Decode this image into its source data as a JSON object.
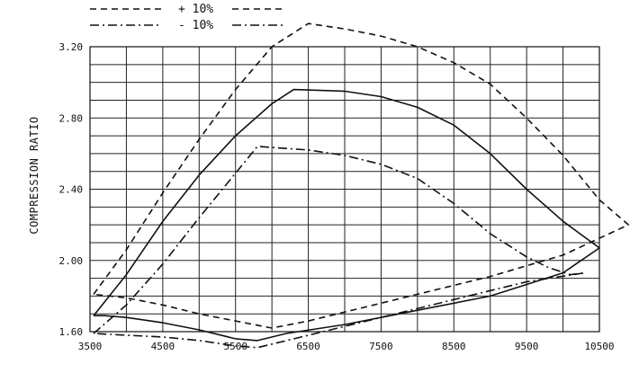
{
  "chart_data": {
    "type": "line",
    "title": "",
    "xlabel": "",
    "ylabel": "COMPRESSION RATIO",
    "xlim": [
      3500,
      10500
    ],
    "ylim": [
      1.6,
      3.2
    ],
    "grid": true,
    "x_tick_labels": [
      "3500",
      "4500",
      "5500",
      "6500",
      "7500",
      "8500",
      "9500",
      "10500"
    ],
    "x_tick_values": [
      3500,
      4500,
      5500,
      6500,
      7500,
      8500,
      9500,
      10500
    ],
    "y_tick_labels": [
      "1.60",
      "2.00",
      "2.40",
      "2.80",
      "3.20"
    ],
    "y_tick_values": [
      1.6,
      2.0,
      2.4,
      2.8,
      3.2
    ],
    "legend": [
      {
        "label": "+ 10%",
        "style": "dashed"
      },
      {
        "label": "- 10%",
        "style": "dashdot"
      }
    ],
    "series": [
      {
        "style": "solid",
        "x": [
          3550,
          4000,
          4500,
          5000,
          5500,
          6000,
          6300,
          7000,
          7500,
          8000,
          8500,
          9000,
          9500,
          10000,
          10500,
          10000,
          9000,
          8000,
          7000,
          6200,
          5800,
          5500,
          5000,
          4500,
          4000,
          3700,
          3550
        ],
        "y": [
          1.69,
          1.92,
          2.22,
          2.48,
          2.7,
          2.88,
          2.96,
          2.95,
          2.92,
          2.86,
          2.76,
          2.6,
          2.4,
          2.22,
          2.07,
          1.93,
          1.8,
          1.72,
          1.64,
          1.59,
          1.55,
          1.56,
          1.61,
          1.65,
          1.68,
          1.69,
          1.69
        ]
      },
      {
        "style": "dashed",
        "x": [
          3550,
          4000,
          4500,
          5000,
          5500,
          6000,
          6500,
          7000,
          7500,
          8000,
          8500,
          9000,
          9500,
          10000,
          10500,
          10900,
          10000,
          9000,
          8000,
          7000,
          6500,
          6000,
          5500,
          5000,
          4500,
          4000,
          3550
        ],
        "y": [
          1.81,
          2.06,
          2.38,
          2.68,
          2.96,
          3.2,
          3.33,
          3.3,
          3.26,
          3.2,
          3.11,
          2.99,
          2.8,
          2.59,
          2.34,
          2.2,
          2.03,
          1.91,
          1.81,
          1.71,
          1.66,
          1.62,
          1.66,
          1.7,
          1.75,
          1.79,
          1.81
        ]
      },
      {
        "style": "dashdot",
        "x": [
          3550,
          4000,
          4500,
          5000,
          5500,
          5800,
          6500,
          7000,
          7500,
          8000,
          8500,
          9000,
          9500,
          9800,
          10100,
          10300,
          9500,
          8500,
          7500,
          6500,
          5800,
          5500,
          5000,
          4500,
          4000,
          3550
        ],
        "y": [
          1.59,
          1.75,
          1.98,
          2.24,
          2.49,
          2.64,
          2.62,
          2.59,
          2.54,
          2.46,
          2.32,
          2.15,
          2.02,
          1.96,
          1.92,
          1.93,
          1.88,
          1.78,
          1.68,
          1.58,
          1.51,
          1.52,
          1.55,
          1.57,
          1.58,
          1.59
        ]
      }
    ]
  }
}
